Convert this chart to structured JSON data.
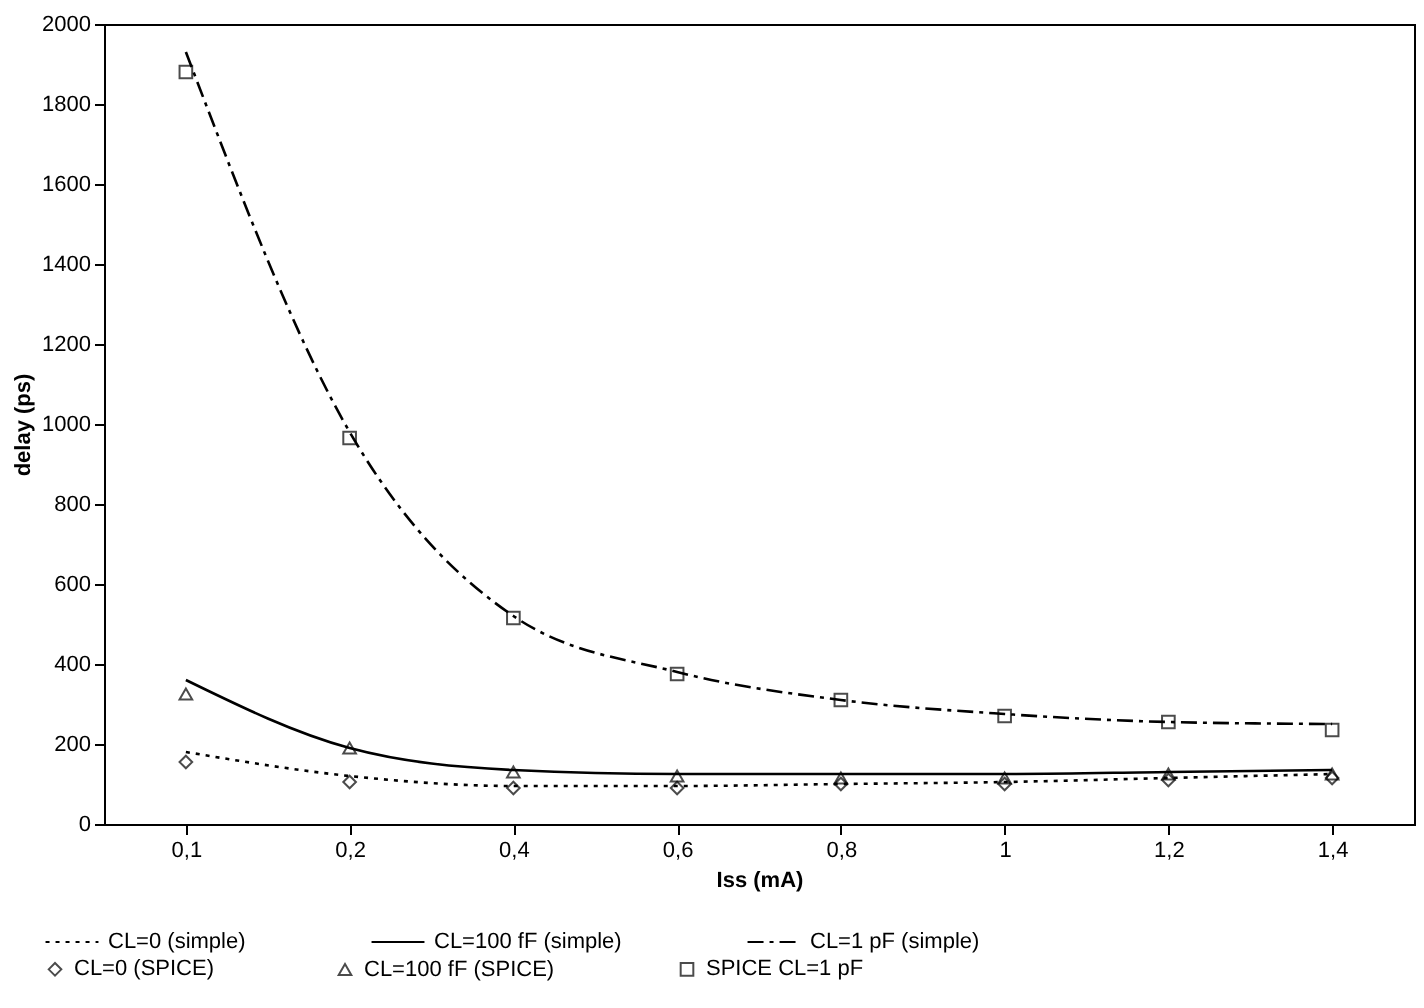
{
  "chart_data": {
    "type": "line",
    "xlabel": "Iss (mA)",
    "ylabel": "delay (ps)",
    "categories": [
      "0,1",
      "0,2",
      "0,4",
      "0,6",
      "0,8",
      "1",
      "1,2",
      "1,4"
    ],
    "ylim": [
      0,
      2000
    ],
    "yticks": [
      0,
      200,
      400,
      600,
      800,
      1000,
      1200,
      1400,
      1600,
      1800,
      2000
    ],
    "grid": false,
    "legend": "bottom",
    "series": [
      {
        "name": "CL=0 (simple)",
        "line_style": "dotted",
        "marker": "none",
        "color": "#000000",
        "values": [
          180,
          120,
          95,
          95,
          100,
          105,
          115,
          125
        ]
      },
      {
        "name": "CL=100 fF (simple)",
        "line_style": "solid",
        "marker": "none",
        "color": "#000000",
        "values": [
          360,
          190,
          135,
          125,
          125,
          125,
          130,
          135
        ]
      },
      {
        "name": "CL=1 pF (simple)",
        "line_style": "dashdot",
        "marker": "none",
        "color": "#000000",
        "values": [
          1930,
          980,
          520,
          380,
          310,
          275,
          255,
          250
        ]
      },
      {
        "name": "CL=0 (SPICE)",
        "type": "scatter",
        "marker": "diamond",
        "color": "#000000",
        "values": [
          155,
          105,
          90,
          90,
          100,
          100,
          110,
          115
        ]
      },
      {
        "name": "CL=100 fF (SPICE)",
        "type": "scatter",
        "marker": "triangle",
        "color": "#000000",
        "values": [
          325,
          190,
          130,
          120,
          115,
          115,
          125,
          125
        ]
      },
      {
        "name": "SPICE CL=1 pF",
        "type": "scatter",
        "marker": "square",
        "color": "#000000",
        "values": [
          1880,
          965,
          515,
          375,
          310,
          270,
          255,
          235
        ]
      }
    ]
  }
}
